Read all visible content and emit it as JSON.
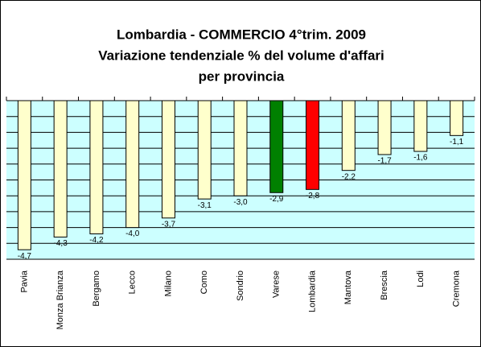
{
  "chart_data": {
    "type": "bar",
    "title": [
      "Lombardia - COMMERCIO 4°trim. 2009",
      "Variazione tendenziale % del volume d'affari",
      "per provincia"
    ],
    "categories": [
      "Pavia",
      "Monza Brianza",
      "Bergamo",
      "Lecco",
      "Milano",
      "Como",
      "Sondrio",
      "Varese",
      "Lombardia",
      "Mantova",
      "Brescia",
      "Lodi",
      "Cremona"
    ],
    "values": [
      -4.7,
      -4.3,
      -4.2,
      -4.0,
      -3.7,
      -3.1,
      -3.0,
      -2.9,
      -2.8,
      -2.2,
      -1.7,
      -1.6,
      -1.1
    ],
    "value_labels": [
      "-4,7",
      "-4,3",
      "-4,2",
      "-4,0",
      "-3,7",
      "-3,1",
      "-3,0",
      "-2,9",
      "-2,8",
      "-2,2",
      "-1,7",
      "-1,6",
      "-1,1"
    ],
    "colors": [
      "#ffffcc",
      "#ffffcc",
      "#ffffcc",
      "#ffffcc",
      "#ffffcc",
      "#ffffcc",
      "#ffffcc",
      "#008000",
      "#ff0000",
      "#ffffcc",
      "#ffffcc",
      "#ffffcc",
      "#ffffcc"
    ],
    "ylim": [
      -5,
      0
    ],
    "yticks": [
      0,
      -0.5,
      -1,
      -1.5,
      -2,
      -2.5,
      -3,
      -3.5,
      -4,
      -4.5,
      -5
    ],
    "grid": true
  }
}
